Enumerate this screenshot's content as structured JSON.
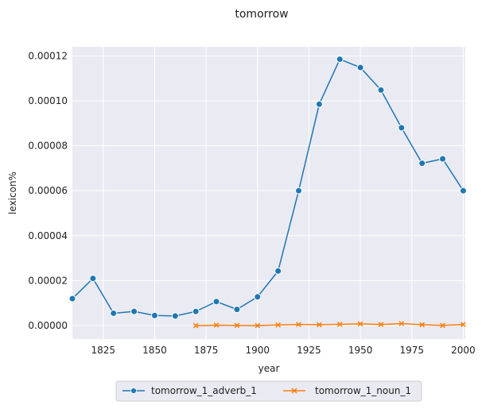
{
  "chart_data": {
    "type": "line",
    "title": "tomorrow",
    "xlabel": "year",
    "ylabel": "lexicon%",
    "xlim": [
      1810,
      2001
    ],
    "ylim": [
      -6e-06,
      0.000124
    ],
    "xticks": [
      1825,
      1850,
      1875,
      1900,
      1925,
      1950,
      1975,
      2000
    ],
    "yticks": [
      0.0,
      2e-05,
      4e-05,
      6e-05,
      8e-05,
      0.0001,
      0.00012
    ],
    "ytick_labels": [
      "0.00000",
      "0.00002",
      "0.00004",
      "0.00006",
      "0.00008",
      "0.00010",
      "0.00012"
    ],
    "grid": true,
    "background": "#eaeaf2",
    "legend_position": "bottom-center",
    "series": [
      {
        "name": "tomorrow_1_adverb_1",
        "color": "#1f77b4",
        "marker": "circle",
        "x": [
          1810,
          1820,
          1830,
          1840,
          1850,
          1860,
          1870,
          1880,
          1890,
          1900,
          1910,
          1920,
          1930,
          1940,
          1950,
          1960,
          1970,
          1980,
          1990,
          2000
        ],
        "y": [
          1.2e-05,
          2.1e-05,
          5.5e-06,
          6.3e-06,
          4.5e-06,
          4.3e-06,
          6.3e-06,
          1.07e-05,
          7.2e-06,
          1.28e-05,
          2.43e-05,
          6e-05,
          9.85e-05,
          0.0001185,
          0.0001148,
          0.0001048,
          8.8e-05,
          7.22e-05,
          7.42e-05,
          6e-05
        ]
      },
      {
        "name": "tomorrow_1_noun_1",
        "color": "#ff7f0e",
        "marker": "x",
        "x": [
          1870,
          1880,
          1890,
          1900,
          1910,
          1920,
          1930,
          1940,
          1950,
          1960,
          1970,
          1980,
          1990,
          2000
        ],
        "y": [
          0.0,
          2e-07,
          1e-07,
          0.0,
          3e-07,
          5e-07,
          4e-07,
          6e-07,
          8e-07,
          5e-07,
          9e-07,
          4e-07,
          1e-07,
          5e-07
        ]
      }
    ]
  }
}
